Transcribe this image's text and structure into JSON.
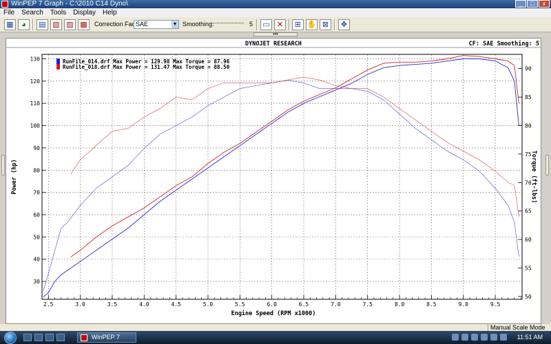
{
  "window": {
    "title": "WinPEP 7     Graph - C:\\2010 C14 Dyno\\",
    "minimize": "_",
    "maximize": "□",
    "close": "x"
  },
  "menu": [
    "File",
    "Search",
    "Tools",
    "Display",
    "Help"
  ],
  "toolbar": {
    "correction_label": "Correction Factor:",
    "correction_value": "SAE",
    "smoothing_label": "Smoothing:",
    "smoothing_value": "5"
  },
  "graph": {
    "header_title": "DYNOJET RESEARCH",
    "header_right": "CF: SAE  Smoothing: 5"
  },
  "chart_data": {
    "type": "line",
    "xlabel": "Engine Speed (RPM x1000)",
    "ylabel": "Power (hp)",
    "y2label": "Torque (ft-lbs)",
    "xlim": [
      2.4,
      9.92
    ],
    "ylim": [
      22,
      132
    ],
    "y2lim": [
      49.5,
      92.5
    ],
    "x_ticks": [
      2.5,
      3.0,
      3.5,
      4.0,
      4.5,
      5.0,
      5.5,
      6.0,
      6.5,
      7.0,
      7.5,
      8.0,
      8.5,
      9.0,
      9.5
    ],
    "x_tick_labels": [
      "2.5",
      "3.0",
      "3.5",
      "4.0",
      "4.5",
      "5.0",
      "5.5",
      "6.0",
      "6.5",
      "7.0",
      "7.5",
      "8.0",
      "8.5",
      "9.0",
      "9.5"
    ],
    "y_ticks": [
      30,
      40,
      50,
      60,
      70,
      80,
      90,
      100,
      110,
      120,
      130
    ],
    "y2_ticks": [
      50,
      55,
      60,
      65,
      70,
      75,
      80,
      85,
      90
    ],
    "grid": true,
    "legend": [
      {
        "text": "RunFile_014.drf Max Power = 129.98 Max Torque = 87.96",
        "color": "#2020cc"
      },
      {
        "text": "RunFile_018.drf Max Power = 131.47 Max Torque = 88.50",
        "color": "#cc2020"
      }
    ],
    "series": [
      {
        "name": "RunFile_014.drf",
        "color": "#2828c8",
        "power_x": [
          2.42,
          2.5,
          2.6,
          2.7,
          2.8,
          3.0,
          3.25,
          3.5,
          3.75,
          4.0,
          4.25,
          4.5,
          4.75,
          5.0,
          5.25,
          5.5,
          5.75,
          6.0,
          6.25,
          6.5,
          6.75,
          7.0,
          7.25,
          7.5,
          7.75,
          8.0,
          8.25,
          8.5,
          8.75,
          9.0,
          9.25,
          9.5,
          9.7,
          9.8,
          9.87
        ],
        "power_y": [
          23,
          25,
          30,
          33,
          35,
          39,
          44,
          49,
          54,
          60,
          66,
          71,
          76,
          81,
          86,
          91,
          96,
          101,
          106,
          110,
          113,
          116,
          119,
          123,
          126,
          127,
          127.5,
          128,
          129,
          130,
          130,
          129,
          126,
          120,
          100
        ],
        "torque_x": [
          2.42,
          2.5,
          2.6,
          2.7,
          2.8,
          3.0,
          3.25,
          3.5,
          3.75,
          4.0,
          4.25,
          4.5,
          4.75,
          5.0,
          5.25,
          5.5,
          5.75,
          6.0,
          6.25,
          6.5,
          6.75,
          7.0,
          7.25,
          7.5,
          7.75,
          8.0,
          8.25,
          8.5,
          8.75,
          9.0,
          9.25,
          9.5,
          9.7,
          9.8,
          9.87
        ],
        "torque_y": [
          51,
          54,
          58,
          62,
          63,
          66,
          69,
          71,
          73,
          76,
          78.5,
          80,
          81.5,
          83.5,
          85,
          86.5,
          87,
          87.5,
          87.96,
          87.5,
          86.5,
          86.5,
          86.5,
          86,
          84.5,
          82,
          79.5,
          77.5,
          75.5,
          74,
          72,
          69,
          66,
          63,
          57
        ]
      },
      {
        "name": "RunFile_018.drf",
        "color": "#c82828",
        "power_x": [
          2.85,
          3.0,
          3.25,
          3.5,
          3.75,
          4.0,
          4.25,
          4.5,
          4.75,
          5.0,
          5.25,
          5.5,
          5.75,
          6.0,
          6.25,
          6.5,
          6.75,
          7.0,
          7.25,
          7.5,
          7.75,
          8.0,
          8.25,
          8.5,
          8.75,
          9.0,
          9.25,
          9.5,
          9.7,
          9.8,
          9.87
        ],
        "power_y": [
          41,
          44,
          50,
          55,
          59,
          63,
          68,
          73,
          77,
          83,
          88,
          92,
          97,
          102,
          107,
          111,
          114,
          117,
          121,
          125,
          128,
          128.5,
          128.5,
          129,
          130,
          131.47,
          131,
          130,
          129,
          127,
          110
        ],
        "torque_x": [
          2.85,
          3.0,
          3.25,
          3.5,
          3.75,
          4.0,
          4.25,
          4.5,
          4.75,
          5.0,
          5.25,
          5.5,
          5.75,
          6.0,
          6.25,
          6.5,
          6.75,
          7.0,
          7.25,
          7.5,
          7.75,
          8.0,
          8.25,
          8.5,
          8.75,
          9.0,
          9.25,
          9.5,
          9.7,
          9.8,
          9.87
        ],
        "torque_y": [
          71.5,
          74,
          76.5,
          79,
          79.5,
          81.5,
          83,
          85,
          84.5,
          86.5,
          87.5,
          87.5,
          87.5,
          87.5,
          88,
          88.5,
          88,
          87,
          86.5,
          86.5,
          85,
          83,
          81,
          79,
          77,
          75.5,
          74,
          72,
          70,
          69.5,
          64
        ]
      }
    ]
  },
  "status": {
    "mode": "Manual Scale Mode"
  },
  "taskbar": {
    "task_label": "WinPEP 7",
    "clock": "11:51 AM"
  }
}
